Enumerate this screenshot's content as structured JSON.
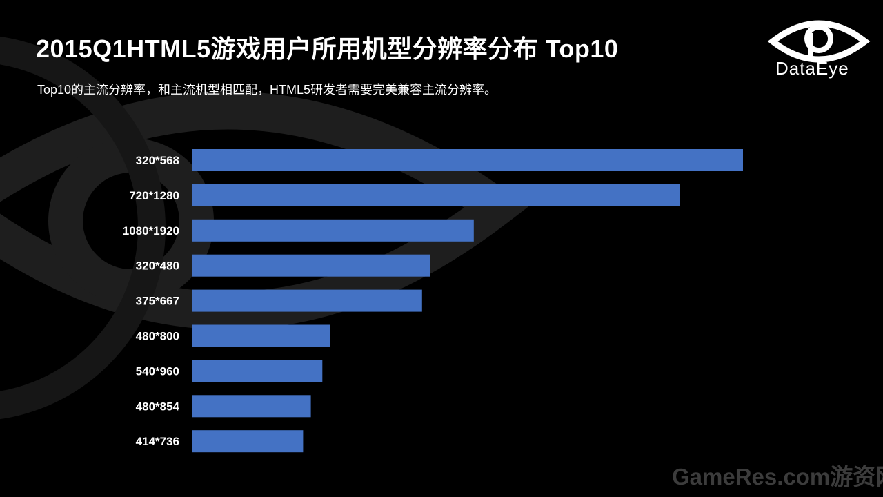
{
  "header": {
    "title": "2015Q1HTML5游戏用户所用机型分辨率分布  Top10",
    "subtitle": "Top10的主流分辨率，和主流机型相匹配，HTML5研发者需要完美兼容主流分辨率。"
  },
  "brand": {
    "logo_icon": "eye-icon",
    "name": "DataEye"
  },
  "watermark": {
    "text": "GameRes.com游资网"
  },
  "colors": {
    "background": "#000000",
    "bar": "#4472c4",
    "text": "#ffffff",
    "bg_mark": "#1e1e1e"
  },
  "chart_data": {
    "type": "bar",
    "orientation": "horizontal",
    "categories": [
      "320*568",
      "720*1280",
      "1080*1920",
      "320*480",
      "375*667",
      "480*800",
      "540*960",
      "480*854",
      "414*736"
    ],
    "values": [
      100,
      88.6,
      51.1,
      43.2,
      41.7,
      25.0,
      23.6,
      21.5,
      20.1
    ],
    "xlabel": "",
    "ylabel": "",
    "xlim": [
      0,
      100
    ],
    "grid": false,
    "legend": "none"
  }
}
